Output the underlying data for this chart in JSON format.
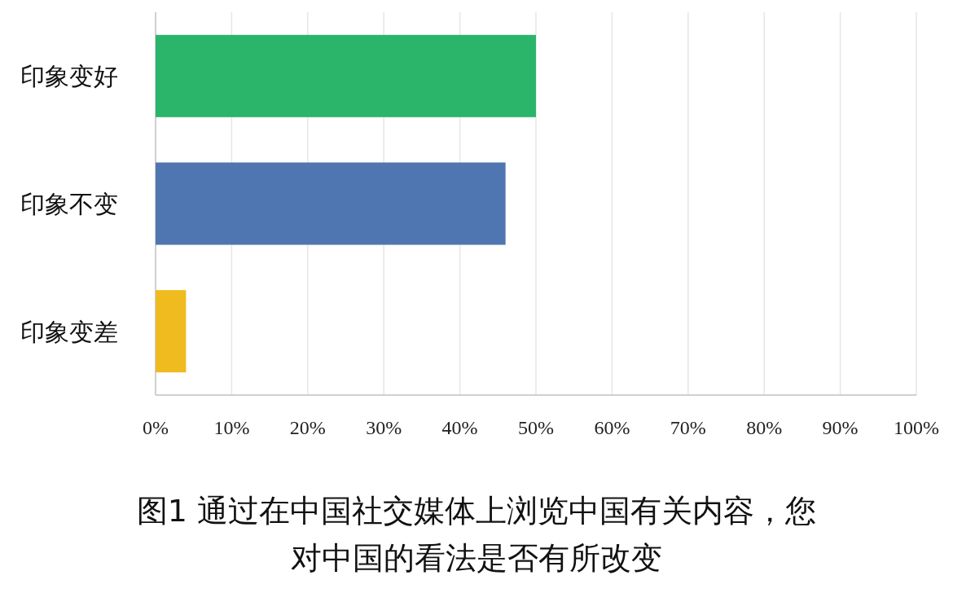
{
  "chart_data": {
    "type": "bar",
    "orientation": "horizontal",
    "title": "图1  通过在中国社交媒体上浏览中国有关内容，您对中国的看法是否有所改变",
    "categories": [
      "印象变好",
      "印象不变",
      "印象变差"
    ],
    "values": [
      50,
      46,
      4
    ],
    "colors": [
      "#2bb56b",
      "#4f76b0",
      "#f0bb1e"
    ],
    "xlim": [
      0,
      100
    ],
    "xticks": [
      {
        "value": 0,
        "label": "0%"
      },
      {
        "value": 10,
        "label": "10%"
      },
      {
        "value": 20,
        "label": "20%"
      },
      {
        "value": 30,
        "label": "30%"
      },
      {
        "value": 40,
        "label": "40%"
      },
      {
        "value": 50,
        "label": "50%"
      },
      {
        "value": 60,
        "label": "60%"
      },
      {
        "value": 70,
        "label": "70%"
      },
      {
        "value": 80,
        "label": "80%"
      },
      {
        "value": 90,
        "label": "90%"
      },
      {
        "value": 100,
        "label": "100%"
      }
    ],
    "grid": "x"
  }
}
